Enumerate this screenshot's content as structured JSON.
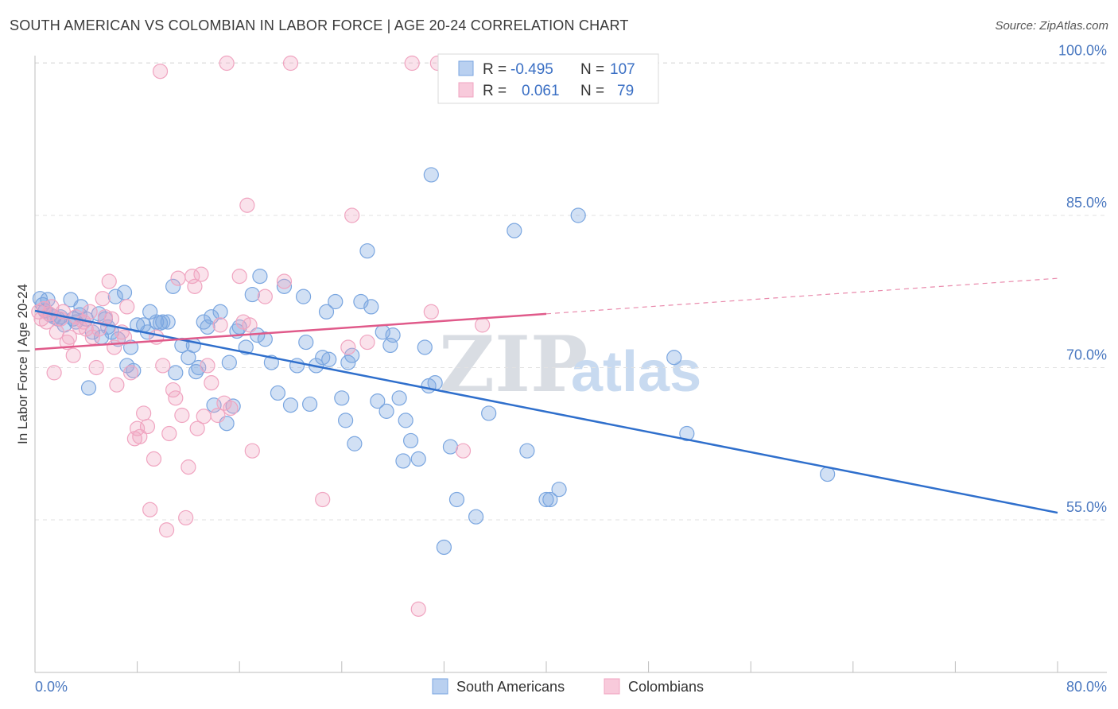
{
  "title": "SOUTH AMERICAN VS COLOMBIAN IN LABOR FORCE | AGE 20-24 CORRELATION CHART",
  "source": "Source: ZipAtlas.com",
  "watermark": {
    "zip": "ZIP",
    "atlas": "atlas"
  },
  "chart_data": {
    "type": "scatter",
    "title": "SOUTH AMERICAN VS COLOMBIAN IN LABOR FORCE | AGE 20-24 CORRELATION CHART",
    "xlabel": "",
    "ylabel": "In Labor Force | Age 20-24",
    "xlim": [
      0,
      80
    ],
    "ylim": [
      40,
      102
    ],
    "x_tick_labels": [
      {
        "value": 0,
        "label": "0.0%"
      },
      {
        "value": 80,
        "label": "80.0%"
      }
    ],
    "y_tick_labels": [
      {
        "value": 55,
        "label": "55.0%"
      },
      {
        "value": 70,
        "label": "70.0%"
      },
      {
        "value": 85,
        "label": "85.0%"
      },
      {
        "value": 100,
        "label": "100.0%"
      }
    ],
    "legend": {
      "position": "top-center",
      "rows": [
        {
          "series": "South Americans",
          "r_label": "R =",
          "r_value": "-0.495",
          "n_label": "N =",
          "n_value": "107"
        },
        {
          "series": "Colombians",
          "r_label": "R =",
          "r_value": "0.061",
          "n_label": "N =",
          "n_value": "79"
        }
      ]
    },
    "series": [
      {
        "name": "South Americans",
        "color": "#7aa6e0",
        "line_color": "#2f6fcc",
        "trend": {
          "x0": 0,
          "y0": 75.6,
          "x1": 80,
          "y1": 55.7
        },
        "points": [
          [
            0.4,
            76.8
          ],
          [
            0.6,
            76.2
          ],
          [
            0.8,
            75.6
          ],
          [
            1.0,
            76.7
          ],
          [
            1.2,
            75.2
          ],
          [
            1.5,
            75.0
          ],
          [
            1.8,
            74.8
          ],
          [
            2.0,
            75.0
          ],
          [
            2.3,
            74.2
          ],
          [
            2.8,
            76.7
          ],
          [
            3.0,
            74.8
          ],
          [
            3.2,
            74.5
          ],
          [
            3.5,
            75.2
          ],
          [
            3.6,
            76.0
          ],
          [
            4.0,
            74.8
          ],
          [
            4.2,
            68.0
          ],
          [
            4.5,
            73.5
          ],
          [
            5.0,
            75.3
          ],
          [
            5.2,
            73.0
          ],
          [
            5.5,
            74.8
          ],
          [
            6.0,
            73.5
          ],
          [
            6.3,
            77.0
          ],
          [
            6.5,
            72.8
          ],
          [
            7.0,
            77.4
          ],
          [
            7.2,
            70.2
          ],
          [
            7.5,
            72.0
          ],
          [
            8.0,
            74.2
          ],
          [
            8.5,
            74.2
          ],
          [
            8.8,
            73.5
          ],
          [
            9.0,
            75.5
          ],
          [
            9.5,
            74.5
          ],
          [
            10.0,
            74.5
          ],
          [
            10.4,
            74.5
          ],
          [
            10.8,
            78.0
          ],
          [
            11.0,
            69.5
          ],
          [
            11.5,
            72.2
          ],
          [
            12.0,
            71.0
          ],
          [
            12.4,
            72.2
          ],
          [
            12.6,
            69.6
          ],
          [
            12.8,
            70.0
          ],
          [
            13.2,
            74.5
          ],
          [
            13.5,
            74.0
          ],
          [
            13.8,
            75.0
          ],
          [
            14.0,
            66.3
          ],
          [
            14.5,
            75.5
          ],
          [
            15.0,
            64.5
          ],
          [
            15.2,
            70.5
          ],
          [
            15.5,
            66.2
          ],
          [
            16.0,
            74.0
          ],
          [
            16.5,
            72.0
          ],
          [
            17.0,
            77.2
          ],
          [
            17.4,
            73.2
          ],
          [
            17.6,
            79.0
          ],
          [
            18.0,
            72.8
          ],
          [
            18.5,
            70.5
          ],
          [
            19.0,
            67.5
          ],
          [
            19.5,
            78.0
          ],
          [
            20.0,
            66.3
          ],
          [
            20.5,
            70.2
          ],
          [
            21.0,
            77.0
          ],
          [
            21.2,
            72.5
          ],
          [
            21.5,
            66.4
          ],
          [
            22.0,
            70.2
          ],
          [
            22.5,
            71.0
          ],
          [
            22.8,
            75.5
          ],
          [
            23.0,
            70.8
          ],
          [
            23.5,
            76.5
          ],
          [
            24.0,
            67.0
          ],
          [
            24.3,
            64.8
          ],
          [
            24.5,
            70.5
          ],
          [
            24.8,
            71.2
          ],
          [
            25.0,
            62.5
          ],
          [
            25.5,
            76.5
          ],
          [
            26.0,
            81.5
          ],
          [
            26.3,
            76.0
          ],
          [
            26.8,
            66.7
          ],
          [
            27.2,
            73.5
          ],
          [
            27.5,
            65.7
          ],
          [
            27.8,
            72.2
          ],
          [
            28.0,
            73.2
          ],
          [
            28.5,
            67.0
          ],
          [
            28.8,
            60.8
          ],
          [
            29.0,
            64.8
          ],
          [
            29.4,
            62.8
          ],
          [
            30.0,
            61.0
          ],
          [
            30.5,
            72.0
          ],
          [
            30.8,
            68.2
          ],
          [
            31.0,
            89.0
          ],
          [
            31.3,
            68.5
          ],
          [
            32.5,
            62.2
          ],
          [
            33.0,
            57.0
          ],
          [
            34.5,
            55.3
          ],
          [
            35.5,
            65.5
          ],
          [
            37.5,
            83.5
          ],
          [
            38.5,
            61.8
          ],
          [
            40.0,
            57.0
          ],
          [
            40.3,
            57.0
          ],
          [
            41.0,
            58.0
          ],
          [
            42.5,
            85.0
          ],
          [
            50.0,
            71.0
          ],
          [
            51.0,
            63.5
          ],
          [
            62.0,
            59.5
          ],
          [
            32.0,
            52.3
          ],
          [
            7.7,
            69.7
          ],
          [
            9.8,
            74.4
          ],
          [
            15.8,
            73.6
          ],
          [
            5.7,
            74.0
          ]
        ]
      },
      {
        "name": "Colombians",
        "color": "#f0a4c0",
        "line_color": "#e05a8a",
        "trend": {
          "x0": 0,
          "y0": 71.8,
          "x1": 40,
          "y1": 75.3
        },
        "trend_extension": {
          "x0": 40,
          "y0": 75.3,
          "x1": 80,
          "y1": 78.8
        },
        "points": [
          [
            0.3,
            75.5
          ],
          [
            0.5,
            74.8
          ],
          [
            0.7,
            75.8
          ],
          [
            0.9,
            74.5
          ],
          [
            1.1,
            75.3
          ],
          [
            1.3,
            76.0
          ],
          [
            1.5,
            69.5
          ],
          [
            1.7,
            73.5
          ],
          [
            2.0,
            74.8
          ],
          [
            2.2,
            75.5
          ],
          [
            2.5,
            72.5
          ],
          [
            2.7,
            73.0
          ],
          [
            3.0,
            71.2
          ],
          [
            3.2,
            75.0
          ],
          [
            3.5,
            74.0
          ],
          [
            3.8,
            74.5
          ],
          [
            4.0,
            73.8
          ],
          [
            4.3,
            75.5
          ],
          [
            4.5,
            73.0
          ],
          [
            4.8,
            70.0
          ],
          [
            5.0,
            73.8
          ],
          [
            5.3,
            76.8
          ],
          [
            5.5,
            75.0
          ],
          [
            5.8,
            78.5
          ],
          [
            6.0,
            74.8
          ],
          [
            6.2,
            72.0
          ],
          [
            6.4,
            68.3
          ],
          [
            6.8,
            73.5
          ],
          [
            7.0,
            73.0
          ],
          [
            7.2,
            76.0
          ],
          [
            7.5,
            69.5
          ],
          [
            7.8,
            63.0
          ],
          [
            8.0,
            64.0
          ],
          [
            8.2,
            63.2
          ],
          [
            8.5,
            65.5
          ],
          [
            8.8,
            64.2
          ],
          [
            9.0,
            56.0
          ],
          [
            9.3,
            61.0
          ],
          [
            9.5,
            73.0
          ],
          [
            9.8,
            99.2
          ],
          [
            10.0,
            70.2
          ],
          [
            10.3,
            54.0
          ],
          [
            10.5,
            63.5
          ],
          [
            10.8,
            67.8
          ],
          [
            11.0,
            67.0
          ],
          [
            11.2,
            78.8
          ],
          [
            11.5,
            65.3
          ],
          [
            11.8,
            55.2
          ],
          [
            12.0,
            60.2
          ],
          [
            12.3,
            79.0
          ],
          [
            12.5,
            78.0
          ],
          [
            12.7,
            64.0
          ],
          [
            13.0,
            79.2
          ],
          [
            13.2,
            65.2
          ],
          [
            13.5,
            70.2
          ],
          [
            13.8,
            68.5
          ],
          [
            14.3,
            65.3
          ],
          [
            14.5,
            74.2
          ],
          [
            14.8,
            66.5
          ],
          [
            15.0,
            100.0
          ],
          [
            15.3,
            66.0
          ],
          [
            16.0,
            79.0
          ],
          [
            16.3,
            74.5
          ],
          [
            16.6,
            86.0
          ],
          [
            16.8,
            74.2
          ],
          [
            17.0,
            61.8
          ],
          [
            18.0,
            77.0
          ],
          [
            19.5,
            78.5
          ],
          [
            20.0,
            100.0
          ],
          [
            22.5,
            57.0
          ],
          [
            24.5,
            72.0
          ],
          [
            24.8,
            85.0
          ],
          [
            26.0,
            72.5
          ],
          [
            29.5,
            100.0
          ],
          [
            30.0,
            46.2
          ],
          [
            31.0,
            75.5
          ],
          [
            31.5,
            100.0
          ],
          [
            33.5,
            61.8
          ],
          [
            35.0,
            74.2
          ]
        ]
      }
    ]
  },
  "bottom_legend": [
    {
      "label": "South Americans",
      "color": "#7aa6e0"
    },
    {
      "label": "Colombians",
      "color": "#f0a4c0"
    }
  ]
}
